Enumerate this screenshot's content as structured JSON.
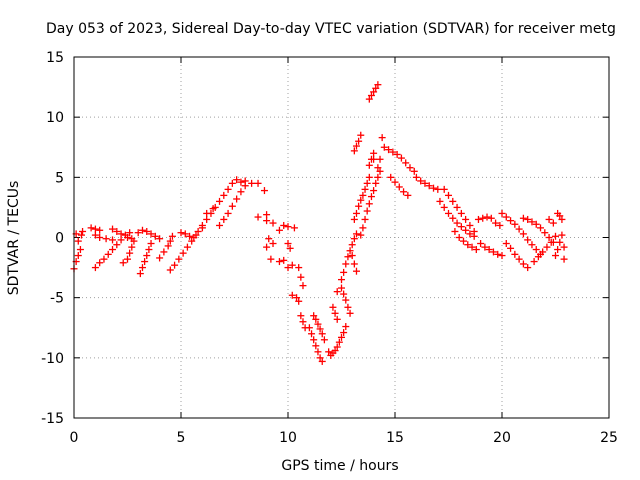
{
  "chart_data": {
    "type": "scatter",
    "title": "Day 053 of 2023, Sidereal Day-to-day VTEC variation (SDTVAR) for receiver metg",
    "xlabel": "GPS time / hours",
    "ylabel": "SDTVAR / TECUs",
    "xlim": [
      0,
      25
    ],
    "ylim": [
      -15,
      15
    ],
    "xticks": [
      "0",
      "5",
      "10",
      "15",
      "20",
      "25"
    ],
    "yticks": [
      "-15",
      "-10",
      "-5",
      "0",
      "5",
      "10",
      "15"
    ],
    "grid": true,
    "marker": "+",
    "marker_color": "#ff0000",
    "series": [
      {
        "points": [
          [
            0.0,
            -2.6
          ],
          [
            0.1,
            -2.0
          ],
          [
            0.2,
            -1.5
          ],
          [
            0.3,
            -1.0
          ],
          [
            0.35,
            0.2
          ],
          [
            0.4,
            0.5
          ],
          [
            0.1,
            0.3
          ],
          [
            0.2,
            -0.3
          ],
          [
            0.8,
            0.8
          ],
          [
            1.0,
            0.7
          ],
          [
            1.2,
            0.6
          ],
          [
            1.0,
            0.2
          ],
          [
            1.2,
            0.0
          ],
          [
            1.5,
            -0.1
          ],
          [
            1.8,
            -0.2
          ],
          [
            1.0,
            -2.5
          ],
          [
            1.2,
            -2.1
          ],
          [
            1.4,
            -1.8
          ],
          [
            1.6,
            -1.4
          ],
          [
            1.8,
            -1.0
          ],
          [
            2.0,
            -0.6
          ],
          [
            2.2,
            -0.2
          ],
          [
            2.4,
            0.2
          ],
          [
            2.6,
            0.4
          ],
          [
            1.8,
            0.7
          ],
          [
            2.0,
            0.5
          ],
          [
            2.2,
            0.3
          ],
          [
            2.5,
            0.0
          ],
          [
            2.7,
            -0.1
          ],
          [
            2.3,
            -2.1
          ],
          [
            2.5,
            -1.8
          ],
          [
            2.6,
            -1.3
          ],
          [
            2.7,
            -0.8
          ],
          [
            2.8,
            -0.3
          ],
          [
            3.0,
            0.4
          ],
          [
            3.2,
            0.6
          ],
          [
            3.4,
            0.5
          ],
          [
            3.6,
            0.3
          ],
          [
            3.8,
            0.1
          ],
          [
            4.0,
            -0.1
          ],
          [
            3.1,
            -3.0
          ],
          [
            3.2,
            -2.5
          ],
          [
            3.3,
            -2.0
          ],
          [
            3.4,
            -1.5
          ],
          [
            3.5,
            -1.0
          ],
          [
            3.6,
            -0.5
          ],
          [
            4.0,
            -1.7
          ],
          [
            4.2,
            -1.2
          ],
          [
            4.4,
            -0.7
          ],
          [
            4.5,
            -0.3
          ],
          [
            4.6,
            0.1
          ],
          [
            4.5,
            -2.7
          ],
          [
            4.7,
            -2.3
          ],
          [
            4.9,
            -1.8
          ],
          [
            5.1,
            -1.3
          ],
          [
            5.3,
            -0.8
          ],
          [
            5.5,
            -0.3
          ],
          [
            5.7,
            0.2
          ],
          [
            5.0,
            0.4
          ],
          [
            5.2,
            0.3
          ],
          [
            5.4,
            0.1
          ],
          [
            5.6,
            0.0
          ],
          [
            5.8,
            0.5
          ],
          [
            6.0,
            0.8
          ],
          [
            6.0,
            1.0
          ],
          [
            6.2,
            1.5
          ],
          [
            6.4,
            2.0
          ],
          [
            6.6,
            2.5
          ],
          [
            6.8,
            3.0
          ],
          [
            7.0,
            3.5
          ],
          [
            7.2,
            4.0
          ],
          [
            7.4,
            4.5
          ],
          [
            7.6,
            4.8
          ],
          [
            7.8,
            4.6
          ],
          [
            8.0,
            4.7
          ],
          [
            6.2,
            2.0
          ],
          [
            6.5,
            2.4
          ],
          [
            6.8,
            1.0
          ],
          [
            7.0,
            1.5
          ],
          [
            7.2,
            2.0
          ],
          [
            7.4,
            2.6
          ],
          [
            7.6,
            3.2
          ],
          [
            7.8,
            3.8
          ],
          [
            8.0,
            4.3
          ],
          [
            8.3,
            4.5
          ],
          [
            8.6,
            4.5
          ],
          [
            8.9,
            3.9
          ],
          [
            9.0,
            1.9
          ],
          [
            8.6,
            1.7
          ],
          [
            9.0,
            1.4
          ],
          [
            9.3,
            1.2
          ],
          [
            9.1,
            -0.1
          ],
          [
            9.3,
            -0.5
          ],
          [
            9.0,
            -0.8
          ],
          [
            9.2,
            -1.8
          ],
          [
            9.6,
            -2.0
          ],
          [
            9.8,
            -1.9
          ],
          [
            10.0,
            -2.5
          ],
          [
            10.2,
            -2.3
          ],
          [
            9.6,
            0.6
          ],
          [
            9.8,
            1.0
          ],
          [
            10.0,
            0.9
          ],
          [
            10.3,
            0.8
          ],
          [
            10.0,
            -0.5
          ],
          [
            10.1,
            -0.9
          ],
          [
            10.2,
            -4.8
          ],
          [
            10.4,
            -5.0
          ],
          [
            10.5,
            -5.3
          ],
          [
            10.6,
            -6.5
          ],
          [
            10.7,
            -7.0
          ],
          [
            10.8,
            -7.5
          ],
          [
            10.5,
            -2.5
          ],
          [
            10.6,
            -3.3
          ],
          [
            10.7,
            -4.0
          ],
          [
            11.0,
            -7.5
          ],
          [
            11.1,
            -8.0
          ],
          [
            11.2,
            -8.5
          ],
          [
            11.3,
            -9.0
          ],
          [
            11.4,
            -9.5
          ],
          [
            11.5,
            -10.0
          ],
          [
            11.6,
            -10.3
          ],
          [
            11.2,
            -6.5
          ],
          [
            11.3,
            -6.8
          ],
          [
            11.4,
            -7.2
          ],
          [
            11.5,
            -7.6
          ],
          [
            11.6,
            -8.0
          ],
          [
            11.7,
            -8.5
          ],
          [
            11.9,
            -9.5
          ],
          [
            12.0,
            -9.8
          ],
          [
            12.1,
            -9.6
          ],
          [
            12.2,
            -9.4
          ],
          [
            12.3,
            -9.1
          ],
          [
            12.4,
            -8.7
          ],
          [
            12.5,
            -8.3
          ],
          [
            12.6,
            -7.9
          ],
          [
            12.7,
            -7.4
          ],
          [
            12.1,
            -5.8
          ],
          [
            12.2,
            -6.3
          ],
          [
            12.3,
            -6.8
          ],
          [
            12.5,
            -4.2
          ],
          [
            12.6,
            -4.7
          ],
          [
            12.7,
            -5.2
          ],
          [
            12.8,
            -5.8
          ],
          [
            12.9,
            -6.3
          ],
          [
            12.3,
            -4.5
          ],
          [
            12.5,
            -3.5
          ],
          [
            12.6,
            -2.9
          ],
          [
            12.7,
            -2.2
          ],
          [
            12.8,
            -1.6
          ],
          [
            12.9,
            -1.1
          ],
          [
            13.0,
            -0.6
          ],
          [
            13.1,
            -0.1
          ],
          [
            13.2,
            0.3
          ],
          [
            13.0,
            -1.5
          ],
          [
            13.1,
            -2.2
          ],
          [
            13.2,
            -2.8
          ],
          [
            13.1,
            1.5
          ],
          [
            13.2,
            2.0
          ],
          [
            13.3,
            2.6
          ],
          [
            13.4,
            3.1
          ],
          [
            13.5,
            3.5
          ],
          [
            13.6,
            4.0
          ],
          [
            13.7,
            4.5
          ],
          [
            13.8,
            5.0
          ],
          [
            13.4,
            0.2
          ],
          [
            13.5,
            0.8
          ],
          [
            13.6,
            1.5
          ],
          [
            13.7,
            2.2
          ],
          [
            13.8,
            2.8
          ],
          [
            13.9,
            3.4
          ],
          [
            14.0,
            3.9
          ],
          [
            14.1,
            4.5
          ],
          [
            14.2,
            5.0
          ],
          [
            14.3,
            5.5
          ],
          [
            13.1,
            7.2
          ],
          [
            13.2,
            7.6
          ],
          [
            13.3,
            8.0
          ],
          [
            13.4,
            8.5
          ],
          [
            13.8,
            6.0
          ],
          [
            13.9,
            6.5
          ],
          [
            14.0,
            7.0
          ],
          [
            14.0,
            6.5
          ],
          [
            13.8,
            11.5
          ],
          [
            13.9,
            11.8
          ],
          [
            14.0,
            12.1
          ],
          [
            14.1,
            12.4
          ],
          [
            14.2,
            12.7
          ],
          [
            14.2,
            5.8
          ],
          [
            14.3,
            6.5
          ],
          [
            14.4,
            8.3
          ],
          [
            14.5,
            7.5
          ],
          [
            14.7,
            7.3
          ],
          [
            14.9,
            7.1
          ],
          [
            15.1,
            6.9
          ],
          [
            15.3,
            6.6
          ],
          [
            15.5,
            6.2
          ],
          [
            15.7,
            5.8
          ],
          [
            15.9,
            5.5
          ],
          [
            14.8,
            5.0
          ],
          [
            15.0,
            4.6
          ],
          [
            15.2,
            4.2
          ],
          [
            15.4,
            3.8
          ],
          [
            15.6,
            3.5
          ],
          [
            16.0,
            5.0
          ],
          [
            16.2,
            4.7
          ],
          [
            16.4,
            4.5
          ],
          [
            16.6,
            4.3
          ],
          [
            16.8,
            4.1
          ],
          [
            17.0,
            4.0
          ],
          [
            17.1,
            3.0
          ],
          [
            17.3,
            2.5
          ],
          [
            17.5,
            2.0
          ],
          [
            17.7,
            1.6
          ],
          [
            17.9,
            1.2
          ],
          [
            18.1,
            0.9
          ],
          [
            18.3,
            0.6
          ],
          [
            18.5,
            0.3
          ],
          [
            18.7,
            0.1
          ],
          [
            17.3,
            4.0
          ],
          [
            17.5,
            3.5
          ],
          [
            17.7,
            3.0
          ],
          [
            17.9,
            2.5
          ],
          [
            18.1,
            2.0
          ],
          [
            18.3,
            1.5
          ],
          [
            18.5,
            1.0
          ],
          [
            18.7,
            0.5
          ],
          [
            17.8,
            0.5
          ],
          [
            18.0,
            0.0
          ],
          [
            18.2,
            -0.3
          ],
          [
            18.4,
            -0.6
          ],
          [
            18.6,
            -0.8
          ],
          [
            18.8,
            -1.0
          ],
          [
            18.9,
            1.5
          ],
          [
            19.1,
            1.6
          ],
          [
            19.3,
            1.7
          ],
          [
            19.5,
            1.6
          ],
          [
            19.7,
            1.2
          ],
          [
            19.9,
            1.0
          ],
          [
            19.0,
            -0.5
          ],
          [
            19.2,
            -0.8
          ],
          [
            19.4,
            -1.0
          ],
          [
            19.6,
            -1.2
          ],
          [
            19.8,
            -1.4
          ],
          [
            20.0,
            -1.5
          ],
          [
            20.0,
            2.0
          ],
          [
            20.2,
            1.7
          ],
          [
            20.4,
            1.4
          ],
          [
            20.6,
            1.1
          ],
          [
            20.8,
            0.7
          ],
          [
            21.0,
            0.3
          ],
          [
            21.2,
            -0.2
          ],
          [
            21.4,
            -0.6
          ],
          [
            21.6,
            -1.0
          ],
          [
            21.8,
            -1.4
          ],
          [
            20.2,
            -0.5
          ],
          [
            20.4,
            -0.9
          ],
          [
            20.6,
            -1.4
          ],
          [
            20.8,
            -1.8
          ],
          [
            21.0,
            -2.2
          ],
          [
            21.2,
            -2.5
          ],
          [
            21.0,
            1.6
          ],
          [
            21.2,
            1.5
          ],
          [
            21.4,
            1.3
          ],
          [
            21.6,
            1.1
          ],
          [
            21.8,
            0.8
          ],
          [
            22.0,
            0.4
          ],
          [
            22.2,
            0.0
          ],
          [
            22.4,
            -0.4
          ],
          [
            21.5,
            -2.0
          ],
          [
            21.7,
            -1.6
          ],
          [
            21.9,
            -1.2
          ],
          [
            22.1,
            -0.8
          ],
          [
            22.3,
            -0.4
          ],
          [
            22.5,
            0.1
          ],
          [
            22.2,
            1.5
          ],
          [
            22.4,
            1.2
          ],
          [
            22.6,
            2.0
          ],
          [
            22.7,
            1.8
          ],
          [
            22.8,
            1.5
          ],
          [
            22.5,
            -1.5
          ],
          [
            22.6,
            -1.0
          ],
          [
            22.7,
            -0.4
          ],
          [
            22.8,
            0.2
          ],
          [
            22.9,
            -0.8
          ],
          [
            22.9,
            -1.8
          ]
        ]
      }
    ]
  }
}
